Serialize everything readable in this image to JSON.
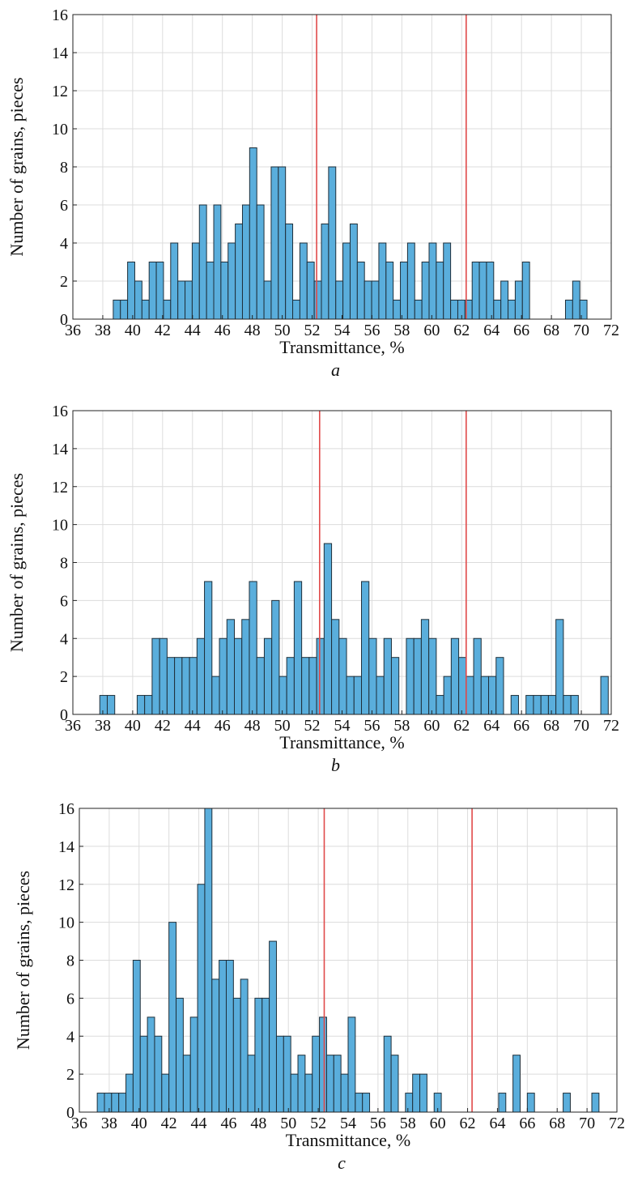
{
  "chart_data": [
    {
      "type": "bar",
      "panel_label": "a",
      "xlabel": "Transmittance, %",
      "ylabel": "Number of grains, pieces",
      "xlim": [
        36,
        72
      ],
      "ylim": [
        0,
        16
      ],
      "xticks": [
        36,
        38,
        40,
        42,
        44,
        46,
        48,
        50,
        52,
        54,
        56,
        58,
        60,
        62,
        64,
        66,
        68,
        70,
        72
      ],
      "yticks": [
        0,
        2,
        4,
        6,
        8,
        10,
        12,
        14,
        16
      ],
      "grid": true,
      "bin_width": 0.48,
      "bin_start": 38.7,
      "values": [
        1,
        1,
        3,
        2,
        1,
        3,
        3,
        1,
        4,
        2,
        2,
        4,
        6,
        3,
        6,
        3,
        4,
        5,
        6,
        9,
        6,
        2,
        8,
        8,
        5,
        1,
        4,
        3,
        2,
        5,
        8,
        2,
        4,
        5,
        3,
        2,
        2,
        4,
        3,
        1,
        3,
        4,
        1,
        3,
        4,
        3,
        4,
        1,
        1,
        1,
        3,
        3,
        3,
        1,
        2,
        1,
        2,
        3,
        0,
        0,
        0,
        0,
        0,
        1,
        2,
        1
      ],
      "reference_lines_x": [
        52.3,
        62.3
      ],
      "bar_color": "#5aaedc",
      "reference_line_color": "#e04a4a"
    },
    {
      "type": "bar",
      "panel_label": "b",
      "xlabel": "Transmittance, %",
      "ylabel": "Number of grains, pieces",
      "xlim": [
        36,
        72
      ],
      "ylim": [
        0,
        16
      ],
      "xticks": [
        36,
        38,
        40,
        42,
        44,
        46,
        48,
        50,
        52,
        54,
        56,
        58,
        60,
        62,
        64,
        66,
        68,
        70,
        72
      ],
      "yticks": [
        0,
        2,
        4,
        6,
        8,
        10,
        12,
        14,
        16
      ],
      "grid": true,
      "bin_width": 0.5,
      "bin_start": 37.8,
      "values": [
        1,
        1,
        0,
        0,
        0,
        1,
        1,
        4,
        4,
        3,
        3,
        3,
        3,
        4,
        7,
        2,
        4,
        5,
        4,
        5,
        7,
        3,
        4,
        6,
        2,
        3,
        7,
        3,
        3,
        4,
        9,
        5,
        4,
        2,
        2,
        7,
        4,
        2,
        4,
        3,
        0,
        4,
        4,
        5,
        4,
        1,
        2,
        4,
        3,
        2,
        4,
        2,
        2,
        3,
        0,
        1,
        0,
        1,
        1,
        1,
        1,
        5,
        1,
        1,
        0,
        0,
        0,
        2
      ],
      "reference_lines_x": [
        52.5,
        62.3
      ],
      "bar_color": "#5aaedc",
      "reference_line_color": "#e04a4a"
    },
    {
      "type": "bar",
      "panel_label": "c",
      "xlabel": "Transmittance, %",
      "ylabel": "Number of grains, pieces",
      "xlim": [
        36,
        72
      ],
      "ylim": [
        0,
        16
      ],
      "xticks": [
        36,
        38,
        40,
        42,
        44,
        46,
        48,
        50,
        52,
        54,
        56,
        58,
        60,
        62,
        64,
        66,
        68,
        70,
        72
      ],
      "yticks": [
        0,
        2,
        4,
        6,
        8,
        10,
        12,
        14,
        16
      ],
      "grid": true,
      "bin_width": 0.48,
      "bin_start": 37.2,
      "values": [
        1,
        1,
        1,
        1,
        2,
        8,
        4,
        5,
        4,
        2,
        10,
        6,
        3,
        5,
        12,
        16,
        7,
        8,
        8,
        6,
        7,
        3,
        6,
        6,
        9,
        4,
        4,
        2,
        3,
        2,
        4,
        5,
        3,
        3,
        2,
        5,
        1,
        1,
        0,
        0,
        4,
        3,
        0,
        1,
        2,
        2,
        0,
        1,
        0,
        0,
        0,
        0,
        0,
        0,
        0,
        0,
        1,
        0,
        3,
        0,
        1,
        0,
        0,
        0,
        0,
        1,
        0,
        0,
        0,
        1
      ],
      "reference_lines_x": [
        52.4,
        62.3
      ],
      "bar_color": "#5aaedc",
      "reference_line_color": "#e04a4a"
    }
  ]
}
